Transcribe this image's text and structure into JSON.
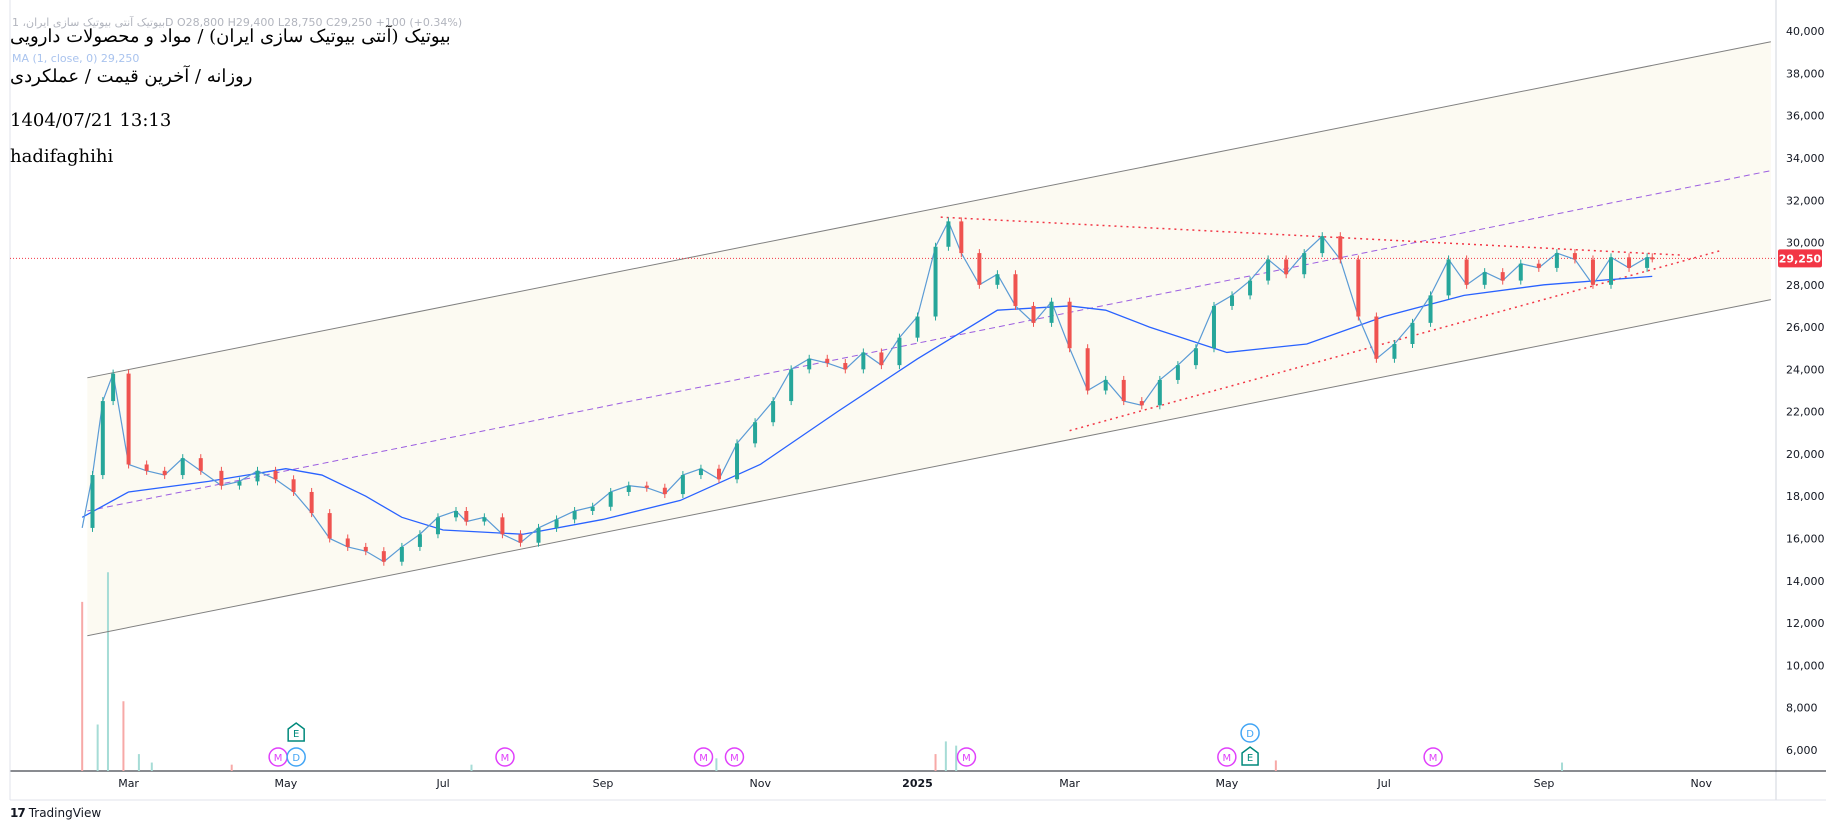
{
  "header": {
    "ohlc_legend": "بیوتیک آنتی بیوتیک سازی ایران، 1D  O28,800  H29,400  L28,750  C29,250  +100 (+0.34%)",
    "ma_legend": "MA (1, close, 0)  29,250",
    "title_line1": "بیوتیک (آنتی بیوتیک سازی ایران) / مواد و محصولات دارویی",
    "title_line2": "روزانه / آخرین قیمت / عملکردی",
    "title_line3": "1404/07/21 13:13",
    "title_line4": "hadifaghihi"
  },
  "branding": {
    "name": "TradingView",
    "logo_icon": "tradingview-logo-icon"
  },
  "colors": {
    "up": "#26a69a",
    "down": "#ef5350",
    "ma": "#2962ff",
    "close_line": "#5b9bd5",
    "channel": "#808080",
    "midline": "#9c5ee0",
    "triangle": "#f23645",
    "price_label_bg": "#f23645",
    "channel_fill": "#fcfaf2"
  },
  "chart_data": {
    "type": "line",
    "interval": "1D",
    "symbol": "بیوتیک",
    "last_price": 29250,
    "last_price_label": "29,250",
    "ylim": [
      5000,
      41000
    ],
    "y_ticks": [
      6000,
      8000,
      10000,
      12000,
      14000,
      16000,
      18000,
      20000,
      22000,
      24000,
      26000,
      28000,
      30000,
      32000,
      34000,
      36000,
      38000,
      40000
    ],
    "y_tick_labels": [
      "6,000",
      "8,000",
      "10,000",
      "12,000",
      "14,000",
      "16,000",
      "18,000",
      "20,000",
      "22,000",
      "24,000",
      "26,000",
      "28,000",
      "30,000",
      "32,000",
      "34,000",
      "36,000",
      "38,000",
      "40,000"
    ],
    "xlim": [
      "2024-01-15",
      "2025-11-30"
    ],
    "x_ticks": [
      "2024-03-01",
      "2024-05-01",
      "2024-07-01",
      "2024-09-01",
      "2024-11-01",
      "2025-01-01",
      "2025-03-01",
      "2025-05-01",
      "2025-07-01",
      "2025-09-01",
      "2025-11-01"
    ],
    "x_tick_labels": [
      "Mar",
      "May",
      "Jul",
      "Sep",
      "Nov",
      "2025",
      "Mar",
      "May",
      "Jul",
      "Sep",
      "Nov"
    ],
    "series": [
      {
        "type": "line",
        "x": [
          "2024-02-12",
          "2024-02-16",
          "2024-02-20",
          "2024-02-24",
          "2024-03-01",
          "2024-03-08",
          "2024-03-15",
          "2024-03-22",
          "2024-03-29",
          "2024-04-06",
          "2024-04-13",
          "2024-04-20",
          "2024-04-27",
          "2024-05-04",
          "2024-05-11",
          "2024-05-18",
          "2024-05-25",
          "2024-06-01",
          "2024-06-08",
          "2024-06-15",
          "2024-06-22",
          "2024-06-29",
          "2024-07-06",
          "2024-07-10",
          "2024-07-17",
          "2024-07-24",
          "2024-07-31",
          "2024-08-07",
          "2024-08-14",
          "2024-08-21",
          "2024-08-28",
          "2024-09-04",
          "2024-09-11",
          "2024-09-18",
          "2024-09-25",
          "2024-10-02",
          "2024-10-09",
          "2024-10-16",
          "2024-10-23",
          "2024-10-30",
          "2024-11-06",
          "2024-11-13",
          "2024-11-20",
          "2024-11-27",
          "2024-12-04",
          "2024-12-11",
          "2024-12-18",
          "2024-12-25",
          "2025-01-01",
          "2025-01-08",
          "2025-01-13",
          "2025-01-18",
          "2025-01-25",
          "2025-02-01",
          "2025-02-08",
          "2025-02-15",
          "2025-02-22",
          "2025-03-01",
          "2025-03-08",
          "2025-03-15",
          "2025-03-22",
          "2025-03-29",
          "2025-04-05",
          "2025-04-12",
          "2025-04-19",
          "2025-04-26",
          "2025-05-03",
          "2025-05-10",
          "2025-05-17",
          "2025-05-24",
          "2025-05-31",
          "2025-06-07",
          "2025-06-14",
          "2025-06-21",
          "2025-06-28",
          "2025-07-05",
          "2025-07-12",
          "2025-07-19",
          "2025-07-26",
          "2025-08-02",
          "2025-08-09",
          "2025-08-16",
          "2025-08-23",
          "2025-08-30",
          "2025-09-06",
          "2025-09-13",
          "2025-09-20",
          "2025-09-27",
          "2025-10-04",
          "2025-10-11",
          "2025-10-13"
        ],
        "y": [
          16500,
          19000,
          22500,
          23800,
          19500,
          19200,
          19000,
          19800,
          19200,
          18500,
          18700,
          19200,
          18800,
          18200,
          17200,
          16000,
          15600,
          15400,
          14900,
          15600,
          16200,
          17000,
          17300,
          16800,
          17000,
          16200,
          15800,
          16500,
          16900,
          17300,
          17500,
          18200,
          18500,
          18400,
          18100,
          19000,
          19300,
          18800,
          20500,
          21500,
          22500,
          24000,
          24500,
          24300,
          24000,
          24800,
          24200,
          25500,
          26500,
          29800,
          31000,
          29500,
          28000,
          28500,
          27000,
          26200,
          27200,
          25000,
          23000,
          23500,
          22500,
          22300,
          23500,
          24200,
          25000,
          27000,
          27500,
          28200,
          29200,
          28500,
          29500,
          30300,
          29200,
          26500,
          24500,
          25200,
          26200,
          27500,
          29200,
          28000,
          28600,
          28200,
          29000,
          28800,
          29500,
          29200,
          28000,
          29300,
          28800,
          29300,
          29250
        ]
      },
      {
        "type": "line",
        "x": [
          "2024-02-12",
          "2024-03-01",
          "2024-04-01",
          "2024-05-01",
          "2024-05-15",
          "2024-06-01",
          "2024-06-15",
          "2024-07-01",
          "2024-08-01",
          "2024-09-01",
          "2024-10-01",
          "2024-11-01",
          "2024-12-01",
          "2025-01-01",
          "2025-02-01",
          "2025-03-01",
          "2025-03-15",
          "2025-04-01",
          "2025-05-01",
          "2025-06-01",
          "2025-07-01",
          "2025-08-01",
          "2025-09-01",
          "2025-10-13"
        ],
        "y": [
          17000,
          18200,
          18700,
          19300,
          19000,
          18000,
          17000,
          16400,
          16200,
          16900,
          17800,
          19500,
          22000,
          24500,
          26800,
          27000,
          26800,
          26000,
          24800,
          25200,
          26500,
          27500,
          28000,
          28400
        ]
      }
    ],
    "volume": {
      "x": [
        "2024-02-12",
        "2024-02-18",
        "2024-02-22",
        "2024-02-28",
        "2024-03-05",
        "2024-03-10",
        "2024-04-10",
        "2024-07-12",
        "2024-10-15",
        "2025-01-08",
        "2025-01-12",
        "2025-01-16",
        "2025-05-20",
        "2025-09-08"
      ],
      "y": [
        13000,
        7200,
        14400,
        8300,
        5800,
        5400,
        5300,
        5300,
        5600,
        5800,
        6400,
        6200,
        5500,
        5400
      ]
    },
    "channel": {
      "upper": {
        "x": [
          "2024-02-14",
          "2025-11-28"
        ],
        "y": [
          23600,
          39500
        ]
      },
      "lower": {
        "x": [
          "2024-02-14",
          "2025-11-28"
        ],
        "y": [
          11400,
          27300
        ]
      },
      "middle": {
        "x": [
          "2024-02-14",
          "2025-11-28"
        ],
        "y": [
          17300,
          33400
        ]
      }
    },
    "triangle": {
      "upper": {
        "x": [
          "2025-01-10",
          "2025-10-25"
        ],
        "y": [
          31200,
          29400
        ]
      },
      "lower": {
        "x": [
          "2025-03-01",
          "2025-11-08"
        ],
        "y": [
          21100,
          29600
        ]
      }
    },
    "event_markers": [
      {
        "label": "M",
        "x": "2024-04-28",
        "row": 1
      },
      {
        "label": "D",
        "x": "2024-05-05",
        "row": 1
      },
      {
        "label": "E",
        "x": "2024-05-05",
        "row": 2
      },
      {
        "label": "M",
        "x": "2024-07-25",
        "row": 1
      },
      {
        "label": "M",
        "x": "2024-10-10",
        "row": 1
      },
      {
        "label": "M",
        "x": "2024-10-22",
        "row": 1
      },
      {
        "label": "M",
        "x": "2025-01-20",
        "row": 1
      },
      {
        "label": "M",
        "x": "2025-05-01",
        "row": 1
      },
      {
        "label": "E",
        "x": "2025-05-10",
        "row": 1
      },
      {
        "label": "D",
        "x": "2025-05-10",
        "row": 2
      },
      {
        "label": "M",
        "x": "2025-07-20",
        "row": 1
      }
    ]
  }
}
